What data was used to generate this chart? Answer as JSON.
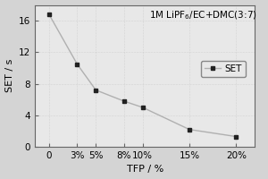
{
  "x_labels": [
    "0",
    "3%",
    "5%",
    "8%",
    "10%",
    "15%",
    "20%"
  ],
  "x_values": [
    0,
    3,
    5,
    8,
    10,
    15,
    20
  ],
  "y_values": [
    16.8,
    10.5,
    7.2,
    5.8,
    5.0,
    2.2,
    1.3
  ],
  "xlabel": "TFP / %",
  "ylabel": "SET / s",
  "title": "1M LiPF$_6$/EC+DMC(3:7)",
  "legend_label": "SET",
  "ylim": [
    0,
    18
  ],
  "yticks": [
    0,
    4,
    8,
    12,
    16
  ],
  "xlim": [
    -1.5,
    22
  ],
  "line_color": "#b0b0b0",
  "marker": "s",
  "marker_color": "#222222",
  "bg_color": "#d4d4d4",
  "plot_bg_color": "#e8e8e8"
}
